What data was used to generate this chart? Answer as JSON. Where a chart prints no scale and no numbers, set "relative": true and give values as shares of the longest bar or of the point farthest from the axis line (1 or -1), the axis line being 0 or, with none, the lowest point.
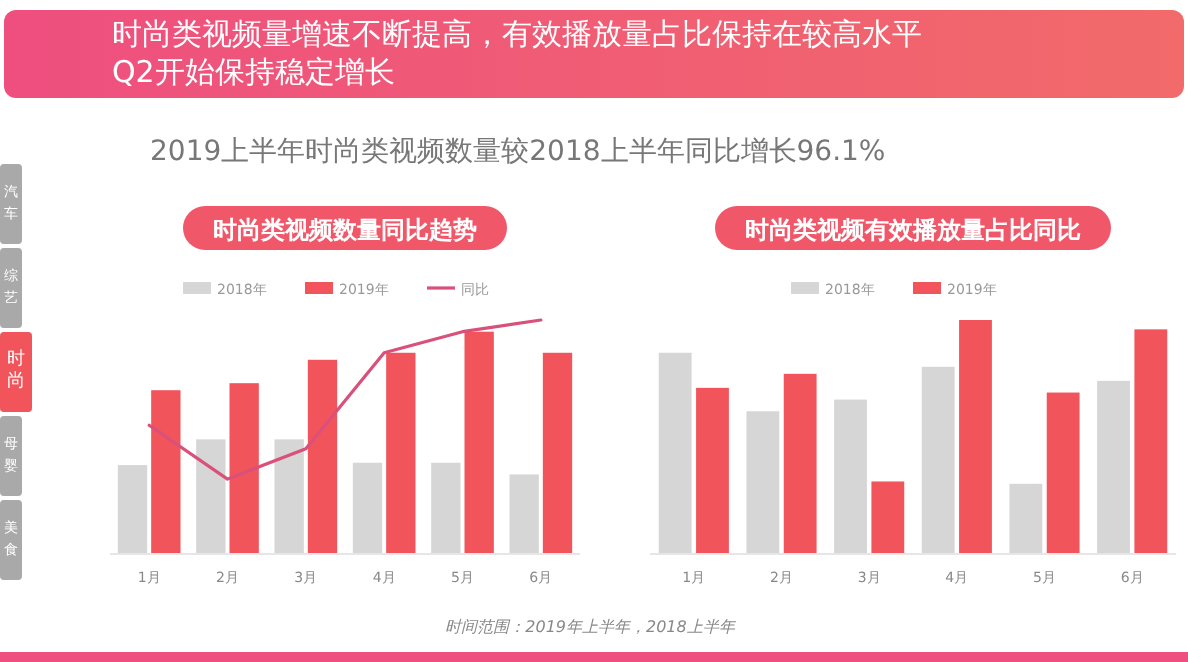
{
  "chart_data": [
    {
      "type": "other",
      "title": "时尚类视频量增速不断提高，有效播放量占比保持在较高水平\nQ2开始保持稳定增长",
      "subtitle": "2019上半年时尚类视频数量较2018上半年同比增长96.1%",
      "annotations": [
        "汽车",
        "综艺",
        "时尚",
        "母婴",
        "美食",
        "时间范围：2019年上半年，2018上半年"
      ]
    },
    {
      "type": "bar",
      "title": "时尚类视频数量同比趋势",
      "relative": true,
      "legend": "top",
      "categories": [
        "1月",
        "2月",
        "3月",
        "4月",
        "5月",
        "6月"
      ],
      "series": [
        {
          "name": "2018年",
          "color": "#d6d6d6",
          "values": [
            0.38,
            0.49,
            0.49,
            0.39,
            0.39,
            0.34
          ]
        },
        {
          "name": "2019年",
          "color": "#f2545b",
          "values": [
            0.7,
            0.73,
            0.83,
            0.86,
            0.95,
            0.86
          ]
        },
        {
          "name": "同比",
          "type": "line",
          "color": "#d9507a",
          "values": [
            0.55,
            0.32,
            0.45,
            0.86,
            0.95,
            1
          ]
        }
      ]
    },
    {
      "type": "bar",
      "title": "时尚类视频有效播放量占比同比",
      "relative": true,
      "legend": "top",
      "categories": [
        "1月",
        "2月",
        "3月",
        "4月",
        "5月",
        "6月"
      ],
      "series": [
        {
          "name": "2018年",
          "color": "#d6d6d6",
          "values": [
            0.86,
            0.61,
            0.66,
            0.8,
            0.3,
            0.74
          ]
        },
        {
          "name": "2019年",
          "color": "#f2545b",
          "values": [
            0.71,
            0.77,
            0.31,
            1,
            0.69,
            0.96
          ]
        }
      ]
    }
  ]
}
